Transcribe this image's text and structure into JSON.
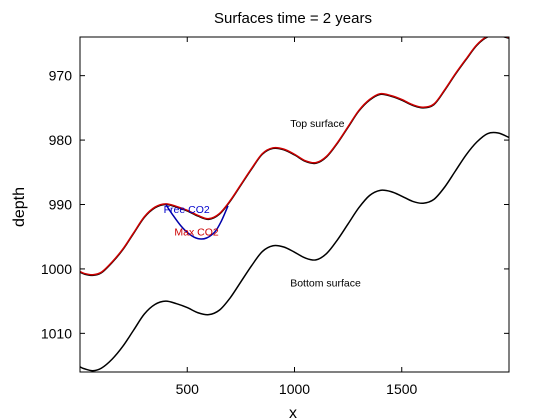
{
  "chart_data": {
    "type": "line",
    "title": "Surfaces time = 2 years",
    "xlabel": "x",
    "ylabel": "depth",
    "xlim": [
      0,
      2000
    ],
    "ylim": [
      1016,
      964
    ],
    "y_reversed": true,
    "grid": false,
    "x_ticks": [
      500,
      1000,
      1500
    ],
    "y_ticks": [
      970,
      980,
      990,
      1000,
      1010
    ],
    "x_tick_labels": [
      "500",
      "1000",
      "1500"
    ],
    "y_tick_labels": [
      "970",
      "980",
      "990",
      "1000",
      "1010"
    ],
    "series": [
      {
        "color": "#000000",
        "x": [
          0,
          20,
          60,
          100,
          150,
          200,
          250,
          300,
          350,
          400,
          450,
          500,
          550,
          600,
          650,
          700,
          750,
          800,
          850,
          900,
          950,
          1000,
          1050,
          1100,
          1150,
          1200,
          1250,
          1300,
          1350,
          1400,
          1450,
          1500,
          1550,
          1600,
          1650,
          1700,
          1750,
          1800,
          1850,
          1900,
          1950,
          2000
        ],
        "y": [
          1000.5,
          1000.8,
          1001.0,
          1000.6,
          999.0,
          997.0,
          994.5,
          992.0,
          990.5,
          990.0,
          990.4,
          991.0,
          991.8,
          992.3,
          991.5,
          989.5,
          987.0,
          984.5,
          982.2,
          981.3,
          981.5,
          982.3,
          983.3,
          983.6,
          982.6,
          980.5,
          978.0,
          975.5,
          973.8,
          972.9,
          973.2,
          973.8,
          974.6,
          975.0,
          974.5,
          972.3,
          969.8,
          967.5,
          965.3,
          964.0,
          963.8,
          964.2
        ]
      },
      {
        "color": "#cc0000",
        "x": [
          0,
          20,
          60,
          100,
          150,
          200,
          250,
          300,
          350,
          400,
          450,
          500,
          550,
          600,
          650,
          700,
          750,
          800,
          850,
          900,
          950,
          1000,
          1050,
          1100,
          1150,
          1200,
          1250,
          1300,
          1350,
          1400,
          1450,
          1500,
          1550,
          1600,
          1650,
          1700,
          1750,
          1800,
          1850,
          1900,
          1950,
          2000
        ],
        "y": [
          1000.4,
          1000.7,
          1000.9,
          1000.5,
          998.9,
          996.9,
          994.4,
          991.9,
          990.4,
          989.9,
          990.3,
          990.9,
          991.7,
          992.2,
          991.4,
          989.4,
          986.9,
          984.4,
          982.1,
          981.2,
          981.4,
          982.2,
          983.2,
          983.5,
          982.5,
          980.4,
          977.9,
          975.4,
          973.7,
          972.8,
          973.1,
          973.7,
          974.5,
          974.9,
          974.4,
          972.2,
          969.7,
          967.4,
          965.2,
          963.9,
          963.7,
          964.1
        ]
      },
      {
        "color": "#000000",
        "x": [
          0,
          20,
          60,
          100,
          150,
          200,
          250,
          300,
          350,
          400,
          450,
          500,
          550,
          600,
          650,
          700,
          750,
          800,
          850,
          900,
          950,
          1000,
          1050,
          1100,
          1150,
          1200,
          1250,
          1300,
          1350,
          1400,
          1450,
          1500,
          1550,
          1600,
          1650,
          1700,
          1750,
          1800,
          1850,
          1900,
          1950,
          2000
        ],
        "y": [
          1015.2,
          1015.5,
          1015.8,
          1015.4,
          1014.0,
          1012.0,
          1009.5,
          1007.0,
          1005.5,
          1005.0,
          1005.4,
          1006.0,
          1006.8,
          1007.1,
          1006.4,
          1004.5,
          1002.0,
          999.5,
          997.3,
          996.4,
          996.6,
          997.4,
          998.3,
          998.6,
          997.6,
          995.5,
          993.0,
          990.5,
          988.6,
          987.8,
          988.0,
          988.7,
          989.5,
          989.8,
          989.2,
          987.3,
          984.8,
          982.3,
          980.3,
          979.0,
          978.9,
          979.6
        ]
      },
      {
        "color": "#0000aa",
        "x": [
          400,
          430,
          470,
          510,
          550,
          590,
          630,
          660,
          690
        ],
        "y": [
          990.0,
          991.5,
          993.3,
          994.6,
          995.3,
          995.2,
          994.2,
          992.5,
          990.2
        ]
      }
    ],
    "annotations": [
      {
        "text": "Top surface",
        "x": 980,
        "y": 978,
        "color": "#000000"
      },
      {
        "text": "Bottom surface",
        "x": 980,
        "y": 1002.7,
        "color": "#000000"
      },
      {
        "text": "Free CO2",
        "x": 390,
        "y": 991.3,
        "color": "#0000cc"
      },
      {
        "text": "Max CO2",
        "x": 440,
        "y": 994.8,
        "color": "#cc0000"
      }
    ]
  }
}
